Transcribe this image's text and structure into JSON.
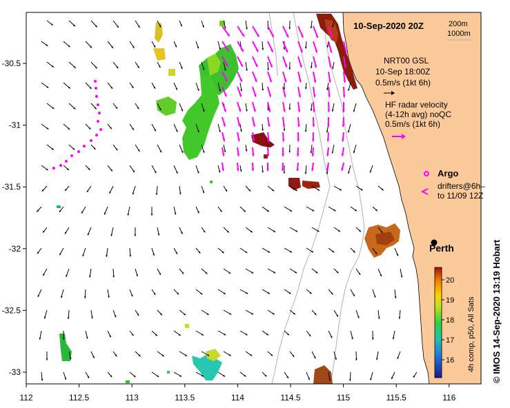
{
  "title": "10-Sep-2020 20Z",
  "contours": {
    "c1": "200m",
    "c2": "1000m"
  },
  "axes": {
    "x_ticks": [
      "112",
      "112.5",
      "113",
      "113.5",
      "114",
      "114.5",
      "115",
      "115.5",
      "116"
    ],
    "y_ticks": [
      "-30.5",
      "-31",
      "-31.5",
      "-32",
      "-32.5",
      "-33"
    ]
  },
  "legend": {
    "model_line1": "NRT00 GSL",
    "model_line2": "10-Sep 18:00Z",
    "model_line3": "0.5m/s (1kt 6h)",
    "radar_line1": "HF radar velocity",
    "radar_line2": "(4-12h avg) noQC",
    "radar_line3": "0.5m/s (1kt 6h)",
    "argo": "Argo",
    "drifters_line1": "drifters@6h–",
    "drifters_line2": "to 11/09 12Z"
  },
  "place": {
    "city": "Perth"
  },
  "colorbar": {
    "ticks": [
      "16",
      "17",
      "18",
      "19",
      "20"
    ],
    "label": "4h comp, p50, All Sats"
  },
  "credit": "©  IMOS 14-Sep-2020 13:19 Hobart",
  "colors": {
    "land": "#fbc99a",
    "arrow_black": "#000000",
    "arrow_magenta": "#ff00ff",
    "contour": "#b0b0b0"
  }
}
